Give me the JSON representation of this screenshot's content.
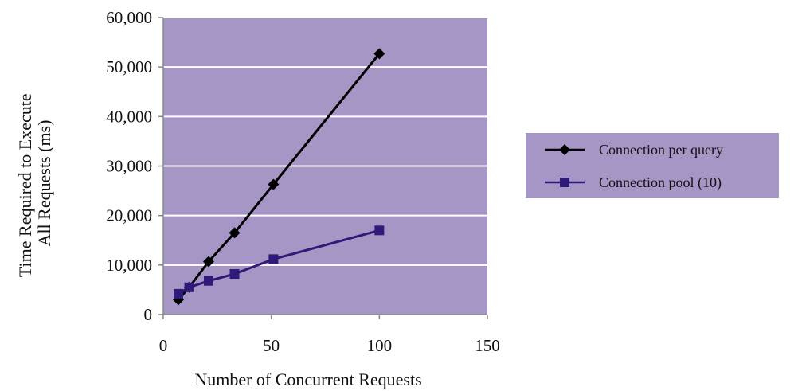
{
  "chart_data": {
    "type": "line",
    "title": "",
    "xlabel": "Number of Concurrent Requests",
    "ylabel": [
      "Time Required to Execute",
      "All Requests (ms)"
    ],
    "xlim": [
      0,
      150
    ],
    "ylim": [
      0,
      60000
    ],
    "x_ticks": [
      0,
      50,
      100,
      150
    ],
    "x_tick_labels": [
      "0",
      "50",
      "100",
      "150"
    ],
    "y_ticks": [
      0,
      10000,
      20000,
      30000,
      40000,
      50000,
      60000
    ],
    "y_tick_labels": [
      "0",
      "10,000",
      "20,000",
      "30,000",
      "40,000",
      "50,000",
      "60,000"
    ],
    "grid": "horizontal",
    "plot_background": "#a696c6",
    "grid_color": "#ffffff",
    "legend_background": "#a696c6",
    "legend_position": "right",
    "series": [
      {
        "name": "Connection per query",
        "color": "#000000",
        "marker": "diamond",
        "x": [
          7,
          12,
          21,
          33,
          51,
          100
        ],
        "y": [
          3000,
          5500,
          10700,
          16500,
          26300,
          52700
        ]
      },
      {
        "name": "Connection pool (10)",
        "color": "#2e1a78",
        "marker": "square",
        "x": [
          7,
          12,
          21,
          33,
          51,
          100
        ],
        "y": [
          4200,
          5500,
          6800,
          8200,
          11200,
          17000
        ]
      }
    ]
  }
}
